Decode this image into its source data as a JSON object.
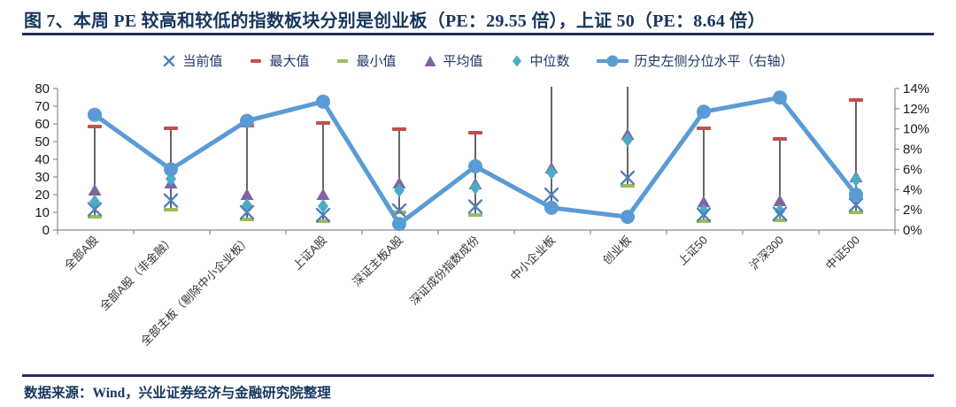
{
  "title": "图 7、本周 PE 较高和较低的指数板块分别是创业板（PE：29.55 倍），上证 50（PE：8.64 倍）",
  "source": "数据来源：Wind，兴业证券经济与金融研究院整理",
  "colors": {
    "navy": "#17365d",
    "rule": "#262c5f",
    "line_blue": "#5b9bd5",
    "current_x": "#4f81bd",
    "max_red": "#c0504d",
    "min_green": "#9bbb59",
    "avg_purple": "#8064a2",
    "median_teal": "#4bacc6",
    "hilo_line": "#3f3f3f",
    "axis_gray": "#8c8c8c",
    "tick_text": "#1a1a1a"
  },
  "chart_data": {
    "type": "line",
    "title": "本周 PE 较高和较低的指数板块分别是创业板（PE：29.55 倍），上证 50（PE：8.64 倍）",
    "xlabel": "",
    "ylabel": "",
    "legend_position": "top",
    "grid": false,
    "categories": [
      "全部A股",
      "全部A股（非金融）",
      "全部主板（剔除中小企业板）",
      "上证A股",
      "深证主板A股",
      "深证成份指数成份",
      "中小企业板",
      "创业板",
      "上证50",
      "沪深300",
      "中证500"
    ],
    "left_axis": {
      "min": 0,
      "max": 80,
      "step": 10,
      "ticks": [
        "0",
        "10",
        "20",
        "30",
        "40",
        "50",
        "60",
        "70",
        "80"
      ]
    },
    "right_axis": {
      "min": 0,
      "max": 14,
      "step": 2,
      "ticks": [
        "0%",
        "2%",
        "4%",
        "6%",
        "8%",
        "10%",
        "12%",
        "14%"
      ]
    },
    "series": [
      {
        "name": "当前值",
        "marker": "x",
        "color": "#4f81bd",
        "axis": "left",
        "values": [
          11.7,
          16.7,
          10,
          8.5,
          11,
          13.3,
          20,
          29.55,
          8.64,
          9.2,
          14.2
        ]
      },
      {
        "name": "最大值",
        "marker": "dash",
        "color": "#c0504d",
        "axis": "left",
        "values": [
          58.5,
          57.5,
          59,
          60.5,
          57,
          55,
          85,
          85,
          57.5,
          51.5,
          73.5
        ]
      },
      {
        "name": "最小值",
        "marker": "dash",
        "color": "#9bbb59",
        "axis": "left",
        "values": [
          7.5,
          11.5,
          6,
          5,
          10,
          8.5,
          12.5,
          25,
          5,
          5.5,
          10
        ]
      },
      {
        "name": "平均值",
        "marker": "triangle",
        "color": "#8064a2",
        "axis": "left",
        "values": [
          22.5,
          26.5,
          20,
          20,
          26.5,
          26,
          35,
          54,
          15.8,
          16.5,
          30
        ]
      },
      {
        "name": "中位数",
        "marker": "diamond",
        "color": "#4bacc6",
        "axis": "left",
        "values": [
          16,
          29,
          14,
          13.5,
          22.5,
          24,
          32.5,
          51,
          10.8,
          10.8,
          28.5
        ]
      },
      {
        "name": "历史左侧分位水平（右轴）",
        "marker": "line-circle",
        "color": "#5b9bd5",
        "axis": "right",
        "values": [
          11.4,
          6.0,
          10.8,
          12.7,
          0.6,
          6.3,
          2.2,
          1.3,
          11.7,
          13.1,
          3.5
        ]
      }
    ]
  }
}
